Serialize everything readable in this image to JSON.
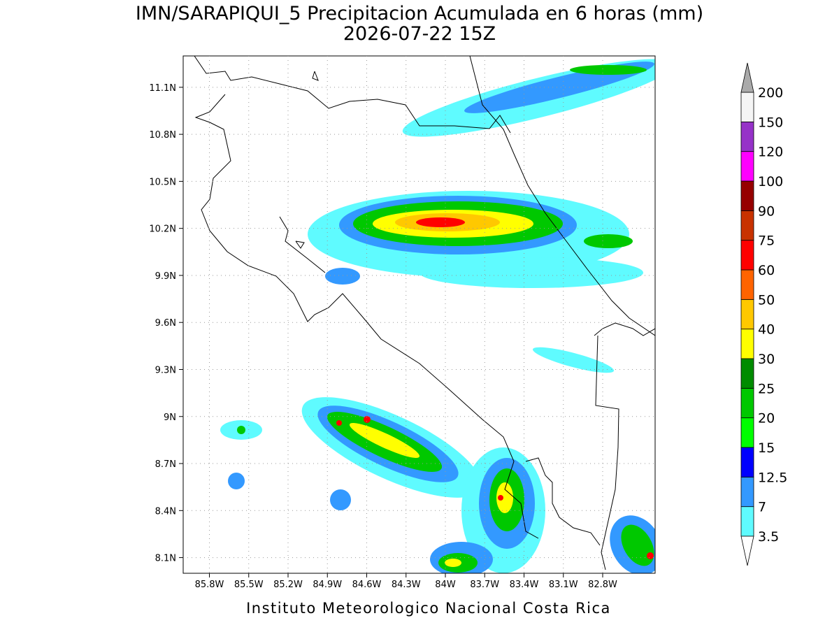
{
  "title": "IMN/SARAPIQUI_5 Precipitacion Acumulada en 6 horas (mm)",
  "subtitle": "2026-07-22 15Z",
  "credit": "Instituto Meteorologico Nacional Costa Rica",
  "map": {
    "xlim": [
      -86.0,
      -82.4
    ],
    "ylim": [
      8.0,
      11.3
    ],
    "grid": true,
    "xticks": [
      {
        "value": -85.8,
        "label": "85.8W"
      },
      {
        "value": -85.5,
        "label": "85.5W"
      },
      {
        "value": -85.2,
        "label": "85.2W"
      },
      {
        "value": -84.9,
        "label": "84.9W"
      },
      {
        "value": -84.6,
        "label": "84.6W"
      },
      {
        "value": -84.3,
        "label": "84.3W"
      },
      {
        "value": -84.0,
        "label": "84W"
      },
      {
        "value": -83.7,
        "label": "83.7W"
      },
      {
        "value": -83.4,
        "label": "83.4W"
      },
      {
        "value": -83.1,
        "label": "83.1W"
      },
      {
        "value": -82.8,
        "label": "82.8W"
      }
    ],
    "yticks": [
      {
        "value": 8.1,
        "label": "8.1N"
      },
      {
        "value": 8.4,
        "label": "8.4N"
      },
      {
        "value": 8.7,
        "label": "8.7N"
      },
      {
        "value": 9.0,
        "label": "9N"
      },
      {
        "value": 9.3,
        "label": "9.3N"
      },
      {
        "value": 9.6,
        "label": "9.6N"
      },
      {
        "value": 9.9,
        "label": "9.9N"
      },
      {
        "value": 10.2,
        "label": "10.2N"
      },
      {
        "value": 10.5,
        "label": "10.5N"
      },
      {
        "value": 10.8,
        "label": "10.8N"
      },
      {
        "value": 11.1,
        "label": "11.1N"
      }
    ]
  },
  "colorbar": {
    "levels": [
      3.5,
      7,
      12.5,
      15,
      20,
      25,
      30,
      40,
      50,
      60,
      75,
      90,
      100,
      120,
      150,
      200
    ],
    "colors": [
      "#5ffbff",
      "#3399ff",
      "#0000ff",
      "#00ff00",
      "#00c800",
      "#008c00",
      "#ffff00",
      "#ffc800",
      "#ff6400",
      "#ff0000",
      "#c83200",
      "#960000",
      "#ff00ff",
      "#9632c8",
      "#f5f5f5"
    ],
    "over_color": "#aaaaaa",
    "under_color": "#ffffff"
  }
}
